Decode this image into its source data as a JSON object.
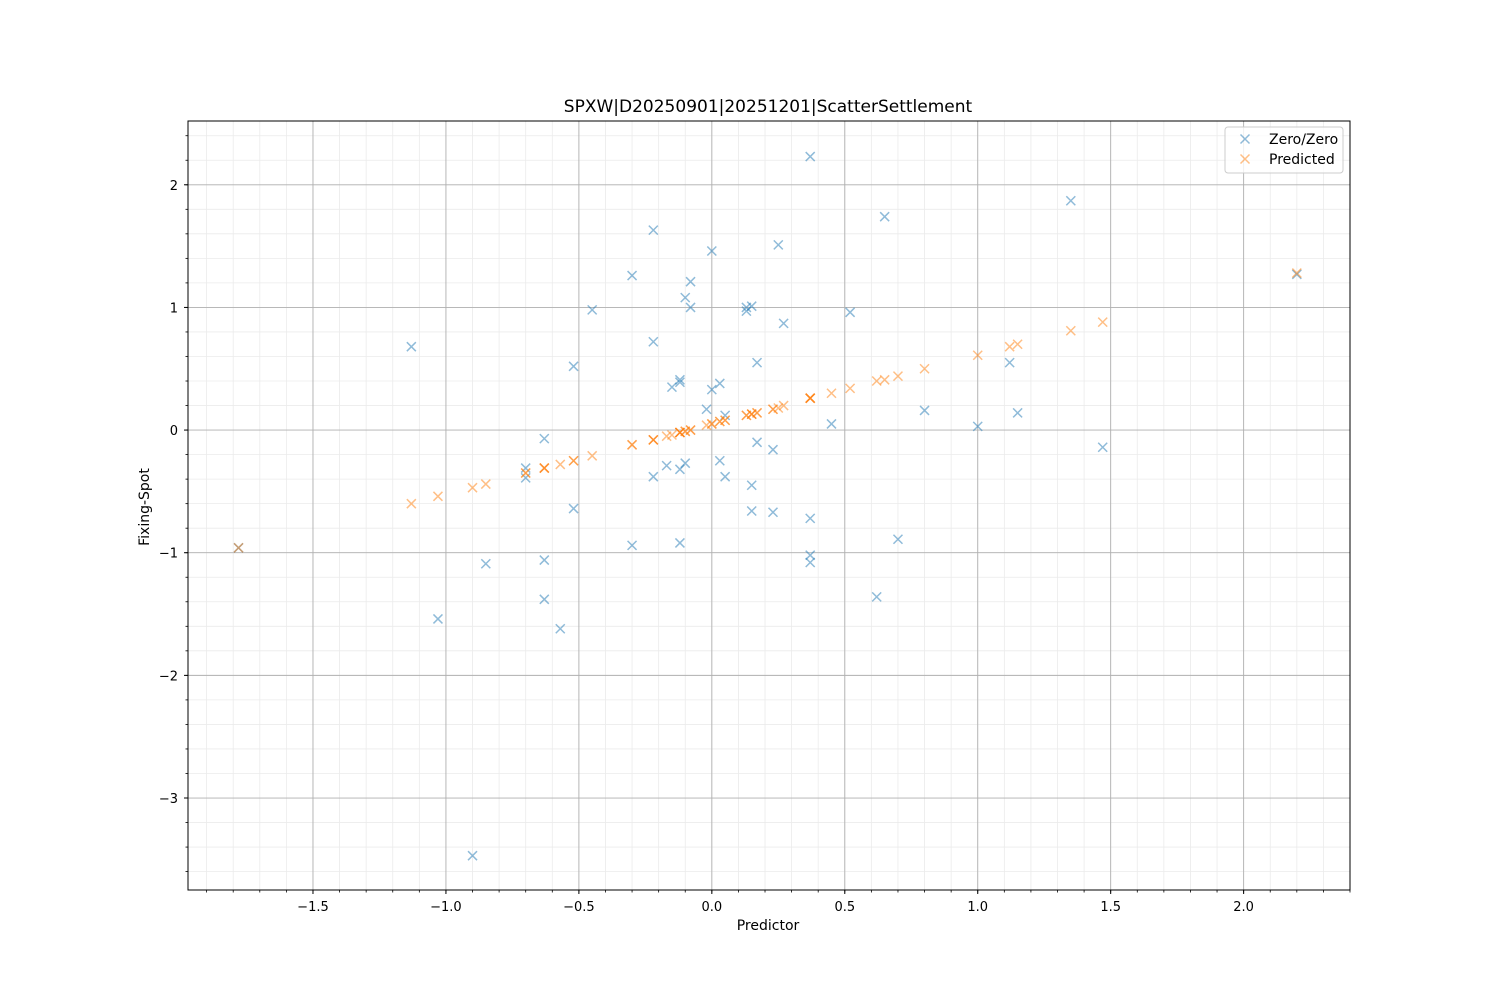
{
  "chart_data": {
    "type": "scatter",
    "title": "SPXW|D20250901|20251201|ScatterSettlement",
    "xlabel": "Predictor",
    "ylabel": "Fixing-Spot",
    "xlim": [
      -1.97,
      2.4
    ],
    "ylim": [
      -3.75,
      2.52
    ],
    "xticks": [
      -1.5,
      -1.0,
      -0.5,
      0.0,
      0.5,
      1.0,
      1.5,
      2.0
    ],
    "xtick_labels": [
      "−1.5",
      "−1.0",
      "−0.5",
      "0.0",
      "0.5",
      "1.0",
      "1.5",
      "2.0"
    ],
    "yticks": [
      -3,
      -2,
      -1,
      0,
      1,
      2
    ],
    "ytick_labels": [
      "−3",
      "−2",
      "−1",
      "0",
      "1",
      "2"
    ],
    "grid": true,
    "minor_grid": true,
    "legend_position": "top-right",
    "marker": "x",
    "series": [
      {
        "name": "Zero/Zero",
        "color": "#1f77b4",
        "points": [
          [
            -1.78,
            -0.96
          ],
          [
            -1.13,
            0.68
          ],
          [
            -1.03,
            -1.54
          ],
          [
            -0.9,
            -3.47
          ],
          [
            -0.85,
            -1.09
          ],
          [
            -0.7,
            -0.31
          ],
          [
            -0.7,
            -0.39
          ],
          [
            -0.63,
            -0.07
          ],
          [
            -0.63,
            -1.06
          ],
          [
            -0.63,
            -1.38
          ],
          [
            -0.57,
            -1.62
          ],
          [
            -0.52,
            0.52
          ],
          [
            -0.52,
            -0.64
          ],
          [
            -0.45,
            0.98
          ],
          [
            -0.3,
            1.26
          ],
          [
            -0.3,
            -0.94
          ],
          [
            -0.22,
            1.63
          ],
          [
            -0.22,
            0.72
          ],
          [
            -0.22,
            -0.38
          ],
          [
            -0.17,
            -0.29
          ],
          [
            -0.15,
            0.35
          ],
          [
            -0.12,
            0.41
          ],
          [
            -0.12,
            0.39
          ],
          [
            -0.12,
            -0.32
          ],
          [
            -0.12,
            -0.92
          ],
          [
            -0.1,
            1.08
          ],
          [
            -0.1,
            -0.27
          ],
          [
            -0.08,
            1.21
          ],
          [
            -0.08,
            1.0
          ],
          [
            -0.02,
            0.17
          ],
          [
            0.0,
            1.46
          ],
          [
            0.0,
            0.33
          ],
          [
            0.03,
            0.38
          ],
          [
            0.03,
            -0.25
          ],
          [
            0.05,
            0.12
          ],
          [
            0.05,
            -0.38
          ],
          [
            0.13,
            0.97
          ],
          [
            0.13,
            1.0
          ],
          [
            0.15,
            1.01
          ],
          [
            0.15,
            -0.45
          ],
          [
            0.15,
            -0.66
          ],
          [
            0.17,
            0.55
          ],
          [
            0.17,
            -0.1
          ],
          [
            0.23,
            -0.16
          ],
          [
            0.23,
            -0.67
          ],
          [
            0.25,
            1.51
          ],
          [
            0.27,
            0.87
          ],
          [
            0.37,
            2.23
          ],
          [
            0.37,
            -0.72
          ],
          [
            0.37,
            -1.02
          ],
          [
            0.37,
            -1.08
          ],
          [
            0.45,
            0.05
          ],
          [
            0.52,
            0.96
          ],
          [
            0.62,
            -1.36
          ],
          [
            0.65,
            1.74
          ],
          [
            0.7,
            -0.89
          ],
          [
            0.8,
            0.16
          ],
          [
            1.0,
            0.03
          ],
          [
            1.12,
            0.55
          ],
          [
            1.15,
            0.14
          ],
          [
            1.35,
            1.87
          ],
          [
            1.47,
            -0.14
          ],
          [
            2.2,
            1.27
          ]
        ]
      },
      {
        "name": "Predicted",
        "color": "#ff7f0e",
        "points": [
          [
            -1.78,
            -0.96
          ],
          [
            -1.13,
            -0.6
          ],
          [
            -1.03,
            -0.54
          ],
          [
            -0.9,
            -0.47
          ],
          [
            -0.85,
            -0.44
          ],
          [
            -0.7,
            -0.35
          ],
          [
            -0.7,
            -0.35
          ],
          [
            -0.63,
            -0.31
          ],
          [
            -0.63,
            -0.31
          ],
          [
            -0.63,
            -0.31
          ],
          [
            -0.57,
            -0.28
          ],
          [
            -0.52,
            -0.25
          ],
          [
            -0.52,
            -0.25
          ],
          [
            -0.45,
            -0.21
          ],
          [
            -0.3,
            -0.12
          ],
          [
            -0.3,
            -0.12
          ],
          [
            -0.22,
            -0.08
          ],
          [
            -0.22,
            -0.08
          ],
          [
            -0.22,
            -0.08
          ],
          [
            -0.17,
            -0.05
          ],
          [
            -0.15,
            -0.04
          ],
          [
            -0.12,
            -0.02
          ],
          [
            -0.12,
            -0.02
          ],
          [
            -0.12,
            -0.02
          ],
          [
            -0.12,
            -0.02
          ],
          [
            -0.1,
            -0.01
          ],
          [
            -0.1,
            -0.01
          ],
          [
            -0.08,
            0.0
          ],
          [
            -0.08,
            0.0
          ],
          [
            -0.02,
            0.04
          ],
          [
            0.0,
            0.05
          ],
          [
            0.0,
            0.05
          ],
          [
            0.03,
            0.07
          ],
          [
            0.03,
            0.07
          ],
          [
            0.05,
            0.08
          ],
          [
            0.05,
            0.08
          ],
          [
            0.13,
            0.12
          ],
          [
            0.13,
            0.12
          ],
          [
            0.15,
            0.13
          ],
          [
            0.15,
            0.13
          ],
          [
            0.15,
            0.13
          ],
          [
            0.17,
            0.14
          ],
          [
            0.17,
            0.14
          ],
          [
            0.23,
            0.17
          ],
          [
            0.23,
            0.17
          ],
          [
            0.25,
            0.18
          ],
          [
            0.27,
            0.2
          ],
          [
            0.37,
            0.26
          ],
          [
            0.37,
            0.26
          ],
          [
            0.37,
            0.26
          ],
          [
            0.37,
            0.26
          ],
          [
            0.45,
            0.3
          ],
          [
            0.52,
            0.34
          ],
          [
            0.62,
            0.4
          ],
          [
            0.65,
            0.41
          ],
          [
            0.7,
            0.44
          ],
          [
            0.8,
            0.5
          ],
          [
            1.0,
            0.61
          ],
          [
            1.12,
            0.68
          ],
          [
            1.15,
            0.7
          ],
          [
            1.35,
            0.81
          ],
          [
            1.47,
            0.88
          ],
          [
            2.2,
            1.28
          ]
        ]
      }
    ]
  }
}
